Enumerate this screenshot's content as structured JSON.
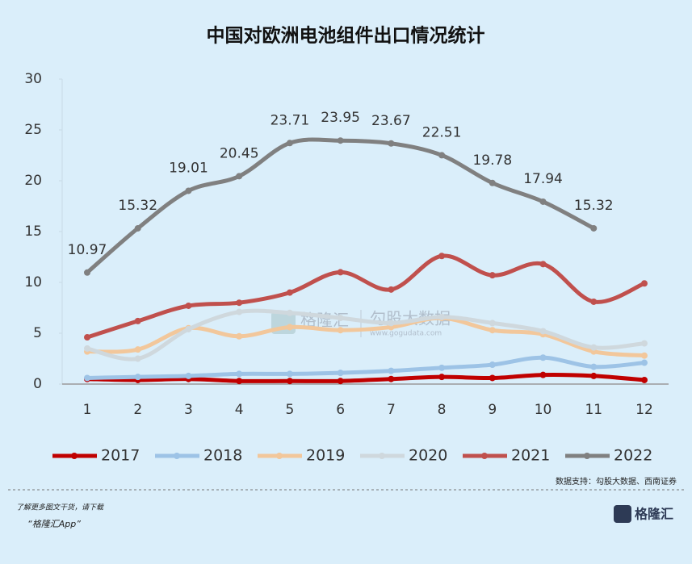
{
  "chart_data": {
    "type": "line",
    "title": "中国对欧洲电池组件出口情况统计",
    "categories": [
      "1",
      "2",
      "3",
      "4",
      "5",
      "6",
      "7",
      "8",
      "9",
      "10",
      "11",
      "12"
    ],
    "ylim": [
      0,
      30
    ],
    "yticks": [
      0,
      5,
      10,
      15,
      20,
      25,
      30
    ],
    "grid": false,
    "smooth": true,
    "legend": "bottom",
    "series": [
      {
        "name": "2017",
        "color": "#c00000",
        "values": [
          0.5,
          0.4,
          0.5,
          0.3,
          0.3,
          0.3,
          0.5,
          0.7,
          0.6,
          0.9,
          0.8,
          0.4
        ]
      },
      {
        "name": "2018",
        "color": "#9dc3e6",
        "values": [
          0.6,
          0.7,
          0.8,
          1.0,
          1.0,
          1.1,
          1.3,
          1.6,
          1.9,
          2.6,
          1.7,
          2.1
        ]
      },
      {
        "name": "2019",
        "color": "#f2c79b",
        "values": [
          3.2,
          3.4,
          5.5,
          4.7,
          5.6,
          5.3,
          5.6,
          6.5,
          5.3,
          4.9,
          3.2,
          2.8
        ]
      },
      {
        "name": "2020",
        "color": "#cfd8dd",
        "values": [
          3.5,
          2.5,
          5.4,
          7.1,
          7.0,
          6.5,
          6.0,
          6.6,
          6.0,
          5.2,
          3.6,
          4.0
        ]
      },
      {
        "name": "2021",
        "color": "#c0504d",
        "values": [
          4.6,
          6.2,
          7.7,
          8.0,
          9.0,
          11.0,
          9.3,
          12.6,
          10.7,
          11.8,
          8.1,
          9.9
        ]
      },
      {
        "name": "2022",
        "color": "#808080",
        "values": [
          10.97,
          15.32,
          19.01,
          20.45,
          23.71,
          23.95,
          23.67,
          22.51,
          19.78,
          17.94,
          15.32,
          null
        ],
        "data_labels": true
      }
    ],
    "source": "数据支持：勾股大数据、西南证券"
  },
  "watermark": {
    "brand": "格隆汇",
    "partner": "勾股大数据",
    "url": "www.gogudata.com"
  },
  "footer": {
    "line1": "了解更多图文干货，请下载",
    "line2": "“格隆汇App”",
    "logo": "格隆汇"
  }
}
